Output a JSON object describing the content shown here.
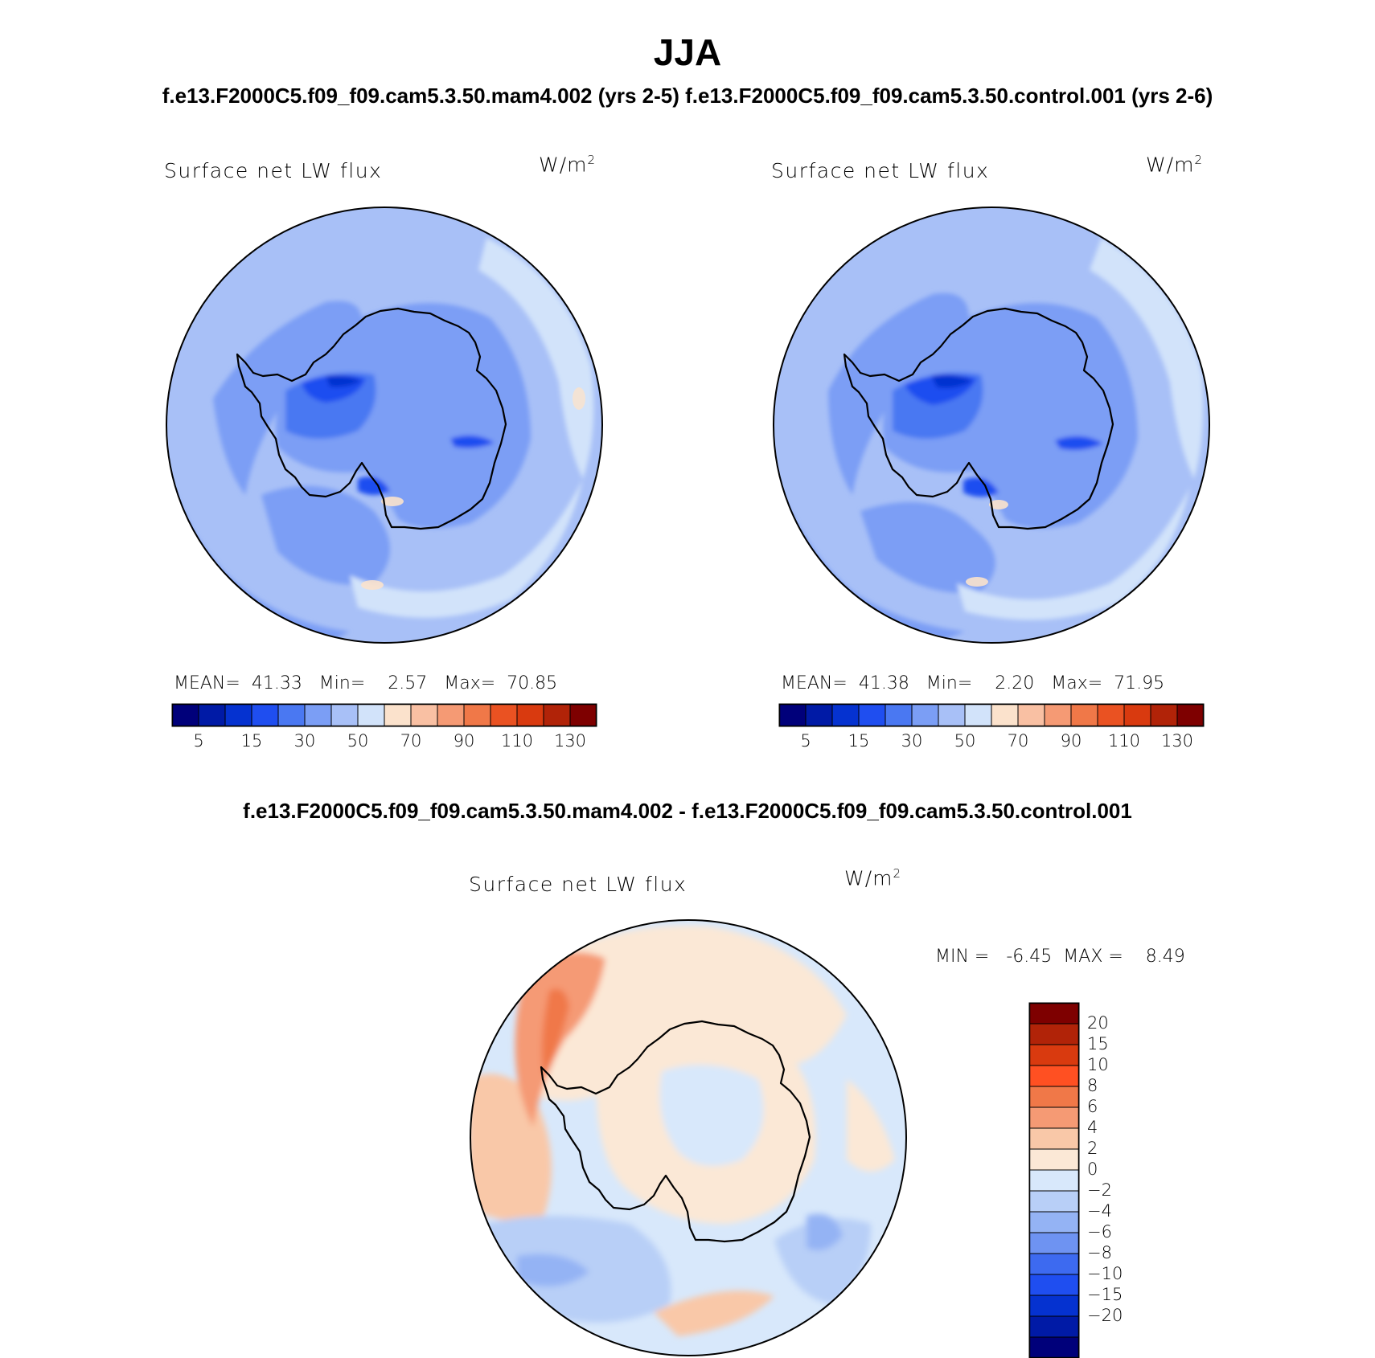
{
  "figure": {
    "season": "JJA",
    "case_title": "f.e13.F2000C5.f09_f09.cam5.3.50.mam4.002 (yrs 2-5) f.e13.F2000C5.f09_f09.cam5.3.50.control.001 (yrs 2-6)",
    "diff_title": "f.e13.F2000C5.f09_f09.cam5.3.50.mam4.002 - f.e13.F2000C5.f09_f09.cam5.3.50.control.001"
  },
  "panels": [
    {
      "title": "Surface net LW flux",
      "units_base": "W/m",
      "units_exp": "2",
      "stats": {
        "mean_label": "MEAN=",
        "mean": "41.33",
        "min_label": "Min=",
        "min": "2.57",
        "max_label": "Max=",
        "max": "70.85"
      }
    },
    {
      "title": "Surface net LW flux",
      "units_base": "W/m",
      "units_exp": "2",
      "stats": {
        "mean_label": "MEAN=",
        "mean": "41.38",
        "min_label": "Min=",
        "min": "2.20",
        "max_label": "Max=",
        "max": "71.95"
      }
    }
  ],
  "abs_colorbar": {
    "colors": [
      "#00007a",
      "#001aa6",
      "#0532d0",
      "#1f4ef0",
      "#4a78f2",
      "#7b9ef5",
      "#a8c0f7",
      "#d2e3fa",
      "#fbe2cc",
      "#f9c0a3",
      "#f59a74",
      "#f07848",
      "#ea5222",
      "#d93a0f",
      "#b12308",
      "#7e0000"
    ],
    "labels": [
      "5",
      "15",
      "30",
      "50",
      "70",
      "90",
      "110",
      "130"
    ]
  },
  "diff_panel": {
    "title": "Surface net LW flux",
    "units_base": "W/m",
    "units_exp": "2",
    "stats": {
      "min_label": "MIN =",
      "min": "-6.45",
      "max_label": "MAX =",
      "max": "8.49"
    }
  },
  "diff_colorbar": {
    "colors": [
      "#7e0000",
      "#b12308",
      "#d93a0f",
      "#ff5022",
      "#f07848",
      "#f59a74",
      "#f9c8a8",
      "#fbe8d6",
      "#d8e8fb",
      "#b8cff7",
      "#94b3f4",
      "#6e93f2",
      "#3d6af0",
      "#1f4ef0",
      "#0532d0",
      "#001aa6",
      "#00007a"
    ],
    "labels": [
      "20",
      "15",
      "10",
      "8",
      "6",
      "4",
      "2",
      "0",
      "-2",
      "-4",
      "-6",
      "-8",
      "-10",
      "-15",
      "-20"
    ]
  },
  "map_colors": {
    "abs_base": "#a8c0f7",
    "abs_deep": "#7b9ef5",
    "abs_mid": "#4a78f2",
    "abs_strong": "#1f4ef0",
    "abs_core": "#0532d0",
    "abs_light": "#d2e3fa",
    "abs_warm": "#fbe2cc",
    "diff_base": "#d8e8fb",
    "diff_blue": "#b8cff7",
    "diff_blue2": "#94b3f4",
    "diff_warm": "#fbe8d6",
    "diff_warm2": "#f9c8a8",
    "diff_red": "#f59a74",
    "diff_red2": "#f07848"
  }
}
